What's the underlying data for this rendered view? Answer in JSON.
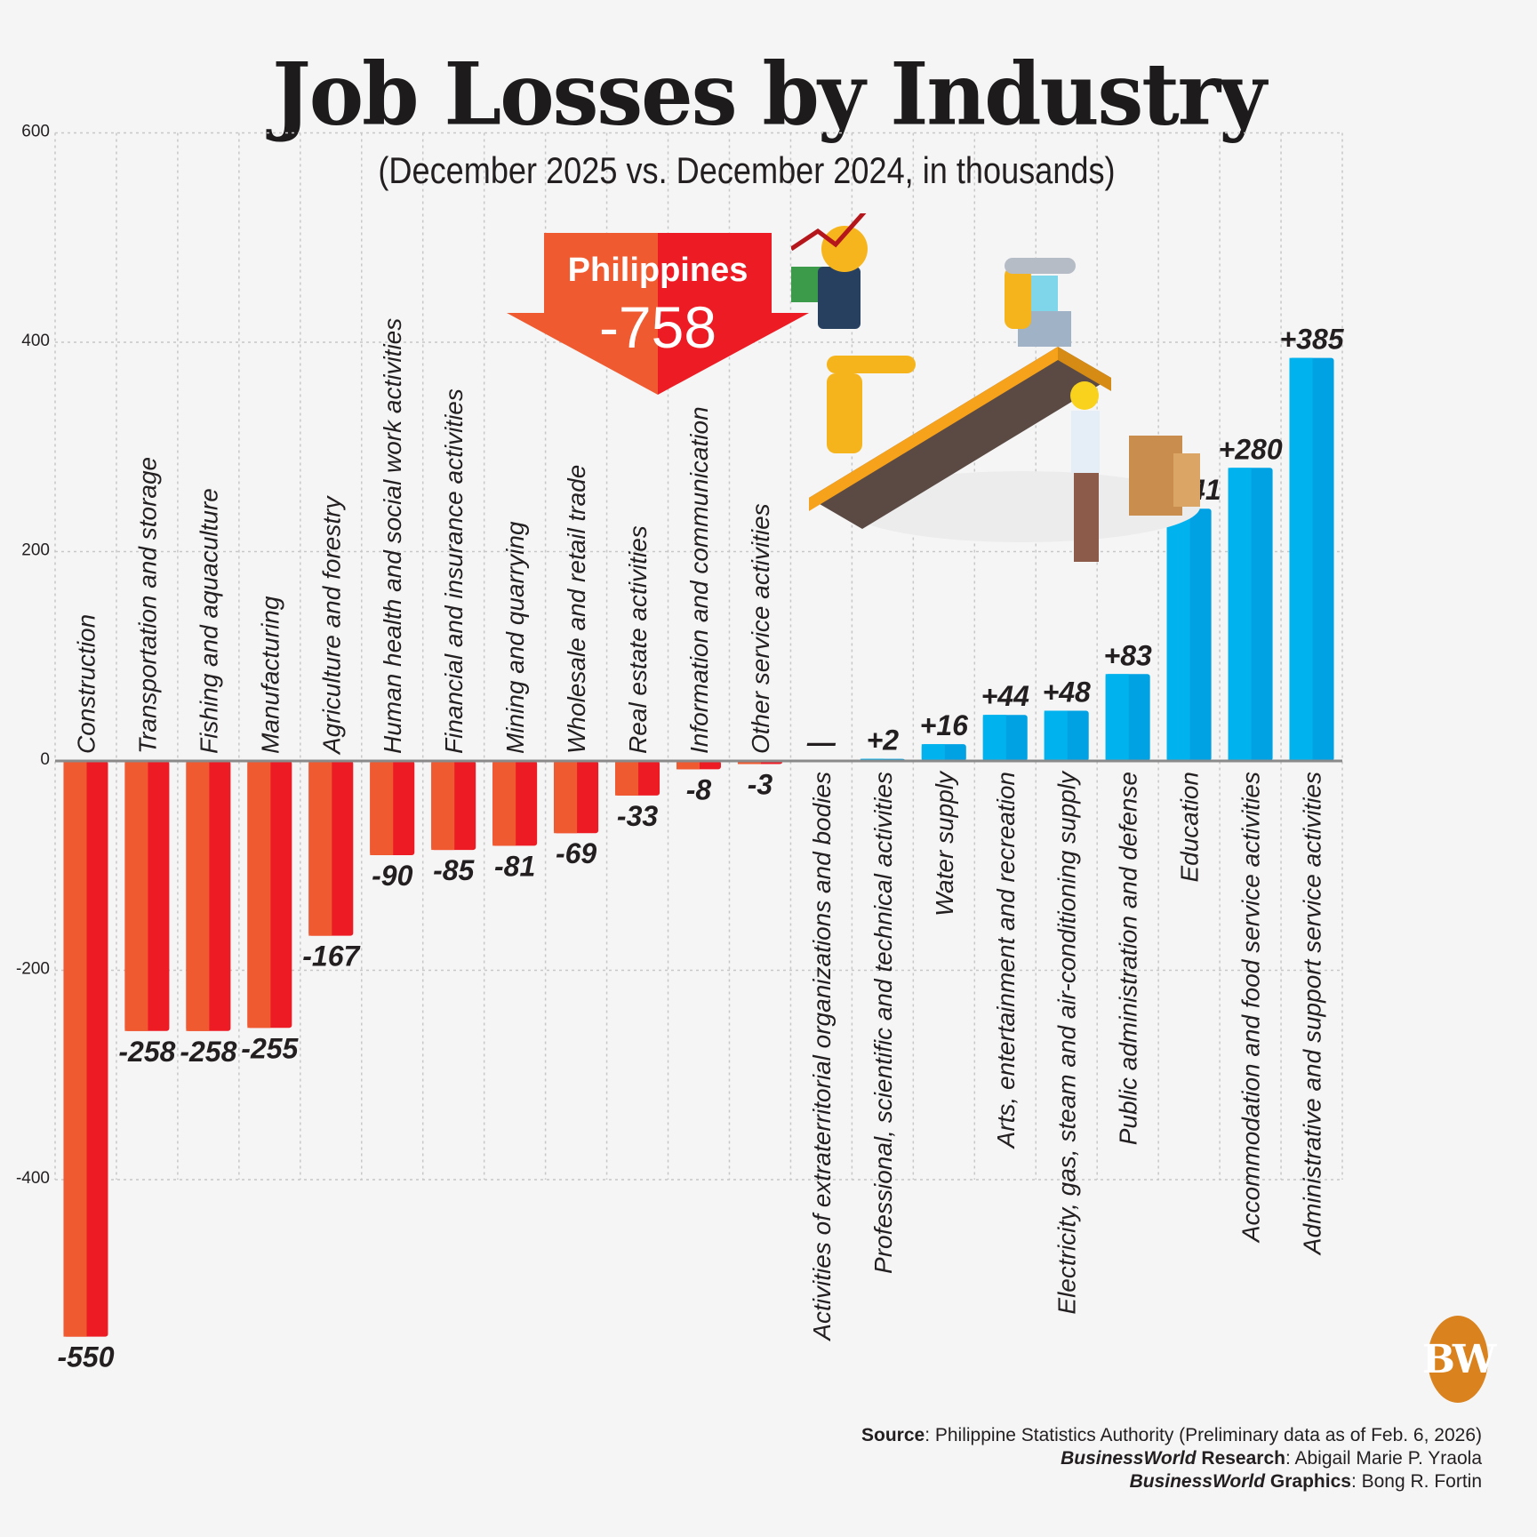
{
  "header": {
    "title": "Job Losses by Industry",
    "subtitle": "(December 2025 vs. December 2024, in thousands)"
  },
  "callout": {
    "label": "Philippines",
    "value": "-758"
  },
  "colors": {
    "negative_left": "#f05a30",
    "negative_right": "#ed1c24",
    "positive_left": "#00b3ee",
    "positive_right": "#00a2e4",
    "grid": "#c7c7c7",
    "zero_line": "#8a8a8a",
    "logo": "#d9821e"
  },
  "logo": {
    "text": "BW"
  },
  "credits": {
    "source_label": "Source",
    "source_text": ": Philippine Statistics Authority (Preliminary data as of Feb. 6, 2026)",
    "research_brand": "BusinessWorld",
    "research_label": " Research",
    "research_text": ": Abigail Marie P. Yraola",
    "graphics_brand": "BusinessWorld",
    "graphics_label": " Graphics",
    "graphics_text": ": Bong R. Fortin"
  },
  "chart_data": {
    "type": "bar",
    "title": "Job Losses by Industry",
    "subtitle": "(December 2025 vs. December 2024, in thousands)",
    "xlabel": "",
    "ylabel": "",
    "ylim": [
      -550,
      600
    ],
    "yticks": [
      600,
      400,
      200,
      0,
      -200,
      -400
    ],
    "grid": true,
    "categories": [
      "Construction",
      "Transportation and storage",
      "Fishing and aquaculture",
      "Manufacturing",
      "Agriculture and forestry",
      "Human health and social work activities",
      "Financial and insurance activities",
      "Mining and quarrying",
      "Wholesale and retail trade",
      "Real estate activities",
      "Information and communication",
      "Other service activities",
      "Activities of extraterritorial organizations and bodies",
      "Professional, scientific and technical activities",
      "Water supply",
      "Arts, entertainment and recreation",
      "Electricity, gas, steam and air-conditioning supply",
      "Public administration and defense",
      "Education",
      "Accommodation and food service activities",
      "Administrative and support service activities"
    ],
    "values": [
      -550,
      -258,
      -258,
      -255,
      -167,
      -90,
      -85,
      -81,
      -69,
      -33,
      -8,
      -3,
      0,
      2,
      16,
      44,
      48,
      83,
      241,
      280,
      385
    ],
    "value_labels": [
      "-550",
      "-258",
      "-258",
      "-255",
      "-167",
      "-90",
      "-85",
      "-81",
      "-69",
      "-33",
      "-8",
      "-3",
      "—",
      "+2",
      "+16",
      "+44",
      "+48",
      "+83",
      "+241",
      "+280",
      "+385"
    ],
    "annotation": {
      "label": "Philippines",
      "value": -758
    }
  }
}
